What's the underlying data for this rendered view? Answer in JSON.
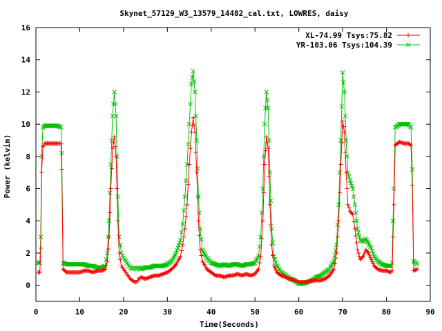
{
  "chart_data": {
    "type": "line",
    "title": "Skynet_57129_W3_13579_14482_cal.txt, LOWRES, daisy",
    "xlabel": "Time(Seconds)",
    "ylabel": "Power (kelvin)",
    "xlim": [
      0,
      90
    ],
    "ylim": [
      -1,
      16
    ],
    "xticks": [
      "0",
      "10",
      "20",
      "30",
      "40",
      "50",
      "60",
      "70",
      "80",
      "90"
    ],
    "yticks": [
      "0",
      "2",
      "4",
      "6",
      "8",
      "10",
      "12",
      "14",
      "16"
    ],
    "grid": false,
    "legend_position": "top-right",
    "series": [
      {
        "name": "XL-74.99 Tsys:75.82",
        "color": "#ff0000",
        "marker": "plus",
        "points": [
          [
            0.5,
            0.8
          ],
          [
            0.9,
            0.8
          ],
          [
            1.1,
            2.3
          ],
          [
            1.3,
            7.0
          ],
          [
            1.6,
            8.6
          ],
          [
            2.0,
            8.8
          ],
          [
            3.0,
            8.8
          ],
          [
            4.0,
            8.8
          ],
          [
            5.0,
            8.8
          ],
          [
            5.7,
            8.8
          ],
          [
            5.9,
            7.2
          ],
          [
            6.2,
            1.0
          ],
          [
            7.0,
            0.8
          ],
          [
            8.0,
            0.8
          ],
          [
            9.0,
            0.8
          ],
          [
            10.0,
            0.8
          ],
          [
            11.0,
            0.9
          ],
          [
            12.0,
            0.9
          ],
          [
            13.0,
            0.8
          ],
          [
            14.0,
            0.9
          ],
          [
            15.0,
            0.9
          ],
          [
            15.8,
            1.0
          ],
          [
            16.3,
            1.5
          ],
          [
            16.7,
            3.0
          ],
          [
            17.1,
            6.0
          ],
          [
            17.5,
            8.5
          ],
          [
            17.9,
            9.2
          ],
          [
            18.3,
            8.0
          ],
          [
            18.7,
            4.0
          ],
          [
            19.0,
            2.0
          ],
          [
            19.5,
            1.2
          ],
          [
            20.0,
            1.0
          ],
          [
            20.5,
            0.8
          ],
          [
            21.0,
            0.6
          ],
          [
            21.5,
            0.4
          ],
          [
            22.0,
            0.3
          ],
          [
            22.5,
            0.2
          ],
          [
            23.0,
            0.2
          ],
          [
            23.5,
            0.4
          ],
          [
            24.0,
            0.5
          ],
          [
            25.0,
            0.4
          ],
          [
            26.0,
            0.5
          ],
          [
            27.0,
            0.6
          ],
          [
            28.0,
            0.6
          ],
          [
            29.0,
            0.7
          ],
          [
            30.0,
            0.8
          ],
          [
            31.0,
            1.0
          ],
          [
            32.0,
            1.3
          ],
          [
            33.0,
            1.8
          ],
          [
            33.5,
            2.5
          ],
          [
            34.0,
            3.5
          ],
          [
            34.5,
            5.0
          ],
          [
            35.0,
            7.5
          ],
          [
            35.5,
            9.5
          ],
          [
            35.9,
            10.4
          ],
          [
            36.3,
            9.5
          ],
          [
            36.7,
            7.0
          ],
          [
            37.1,
            4.0
          ],
          [
            37.5,
            2.2
          ],
          [
            38.0,
            1.5
          ],
          [
            39.0,
            1.0
          ],
          [
            40.0,
            0.8
          ],
          [
            41.0,
            0.6
          ],
          [
            42.0,
            0.6
          ],
          [
            43.0,
            0.5
          ],
          [
            44.0,
            0.6
          ],
          [
            45.0,
            0.6
          ],
          [
            46.0,
            0.7
          ],
          [
            47.0,
            0.6
          ],
          [
            48.0,
            0.7
          ],
          [
            49.0,
            0.6
          ],
          [
            50.0,
            0.7
          ],
          [
            50.8,
            1.0
          ],
          [
            51.3,
            1.8
          ],
          [
            51.8,
            4.0
          ],
          [
            52.2,
            7.5
          ],
          [
            52.6,
            9.2
          ],
          [
            53.0,
            8.5
          ],
          [
            53.4,
            5.0
          ],
          [
            53.8,
            2.5
          ],
          [
            54.3,
            1.2
          ],
          [
            55.0,
            0.8
          ],
          [
            56.0,
            0.6
          ],
          [
            57.0,
            0.5
          ],
          [
            58.0,
            0.4
          ],
          [
            59.0,
            0.3
          ],
          [
            60.0,
            0.2
          ],
          [
            61.0,
            0.2
          ],
          [
            62.0,
            0.2
          ],
          [
            63.0,
            0.3
          ],
          [
            64.0,
            0.3
          ],
          [
            65.0,
            0.3
          ],
          [
            66.0,
            0.4
          ],
          [
            67.0,
            0.6
          ],
          [
            68.0,
            1.0
          ],
          [
            68.6,
            2.0
          ],
          [
            69.1,
            4.0
          ],
          [
            69.6,
            7.5
          ],
          [
            70.0,
            10.2
          ],
          [
            70.4,
            9.5
          ],
          [
            70.8,
            7.0
          ],
          [
            71.2,
            5.0
          ],
          [
            71.7,
            4.6
          ],
          [
            72.3,
            4.4
          ],
          [
            72.8,
            3.5
          ],
          [
            73.4,
            2.2
          ],
          [
            74.0,
            1.6
          ],
          [
            74.7,
            1.8
          ],
          [
            75.3,
            2.2
          ],
          [
            75.9,
            2.0
          ],
          [
            76.5,
            1.6
          ],
          [
            77.2,
            1.2
          ],
          [
            78.0,
            1.0
          ],
          [
            79.0,
            0.9
          ],
          [
            80.0,
            0.9
          ],
          [
            81.0,
            0.8
          ],
          [
            81.3,
            0.9
          ],
          [
            81.5,
            3.0
          ],
          [
            81.7,
            5.0
          ],
          [
            82.0,
            8.7
          ],
          [
            83.0,
            8.9
          ],
          [
            84.0,
            8.8
          ],
          [
            85.0,
            8.8
          ],
          [
            85.6,
            8.7
          ],
          [
            85.9,
            6.2
          ],
          [
            86.2,
            0.9
          ],
          [
            87.0,
            1.0
          ]
        ]
      },
      {
        "name": "YR-103.06 Tsys:104.39",
        "color": "#00c000",
        "marker": "cross",
        "points": [
          [
            0.5,
            1.4
          ],
          [
            0.9,
            1.4
          ],
          [
            1.1,
            3.0
          ],
          [
            1.3,
            8.0
          ],
          [
            1.6,
            9.8
          ],
          [
            2.0,
            9.9
          ],
          [
            3.0,
            9.9
          ],
          [
            4.0,
            9.9
          ],
          [
            5.0,
            9.9
          ],
          [
            5.7,
            9.8
          ],
          [
            5.9,
            8.2
          ],
          [
            6.2,
            1.4
          ],
          [
            7.0,
            1.3
          ],
          [
            8.0,
            1.3
          ],
          [
            9.0,
            1.3
          ],
          [
            10.0,
            1.3
          ],
          [
            11.0,
            1.3
          ],
          [
            12.0,
            1.2
          ],
          [
            13.0,
            1.2
          ],
          [
            14.0,
            1.1
          ],
          [
            15.0,
            1.1
          ],
          [
            15.8,
            1.2
          ],
          [
            16.3,
            2.0
          ],
          [
            16.7,
            4.0
          ],
          [
            17.1,
            7.5
          ],
          [
            17.5,
            10.5
          ],
          [
            17.9,
            12.0
          ],
          [
            18.3,
            10.5
          ],
          [
            18.7,
            5.5
          ],
          [
            19.0,
            3.0
          ],
          [
            19.5,
            2.0
          ],
          [
            20.0,
            1.7
          ],
          [
            20.5,
            1.5
          ],
          [
            21.0,
            1.3
          ],
          [
            21.5,
            1.1
          ],
          [
            22.0,
            1.0
          ],
          [
            22.5,
            1.1
          ],
          [
            23.0,
            1.0
          ],
          [
            23.5,
            1.1
          ],
          [
            24.0,
            1.0
          ],
          [
            25.0,
            1.1
          ],
          [
            26.0,
            1.1
          ],
          [
            27.0,
            1.2
          ],
          [
            28.0,
            1.2
          ],
          [
            29.0,
            1.2
          ],
          [
            30.0,
            1.3
          ],
          [
            31.0,
            1.5
          ],
          [
            32.0,
            2.0
          ],
          [
            33.0,
            2.8
          ],
          [
            33.5,
            3.8
          ],
          [
            34.0,
            5.5
          ],
          [
            34.5,
            7.5
          ],
          [
            35.0,
            10.0
          ],
          [
            35.5,
            12.5
          ],
          [
            35.9,
            13.3
          ],
          [
            36.3,
            12.0
          ],
          [
            36.7,
            9.0
          ],
          [
            37.1,
            5.5
          ],
          [
            37.5,
            3.5
          ],
          [
            38.0,
            2.2
          ],
          [
            39.0,
            1.7
          ],
          [
            40.0,
            1.4
          ],
          [
            41.0,
            1.3
          ],
          [
            42.0,
            1.2
          ],
          [
            43.0,
            1.3
          ],
          [
            44.0,
            1.2
          ],
          [
            45.0,
            1.3
          ],
          [
            46.0,
            1.3
          ],
          [
            47.0,
            1.2
          ],
          [
            48.0,
            1.3
          ],
          [
            49.0,
            1.3
          ],
          [
            50.0,
            1.4
          ],
          [
            50.8,
            1.8
          ],
          [
            51.3,
            3.0
          ],
          [
            51.8,
            6.0
          ],
          [
            52.2,
            10.0
          ],
          [
            52.6,
            12.0
          ],
          [
            53.0,
            11.0
          ],
          [
            53.4,
            7.0
          ],
          [
            53.8,
            3.5
          ],
          [
            54.3,
            1.8
          ],
          [
            55.0,
            1.2
          ],
          [
            56.0,
            0.8
          ],
          [
            57.0,
            0.6
          ],
          [
            58.0,
            0.4
          ],
          [
            59.0,
            0.3
          ],
          [
            60.0,
            0.1
          ],
          [
            61.0,
            0.1
          ],
          [
            62.0,
            0.2
          ],
          [
            63.0,
            0.3
          ],
          [
            64.0,
            0.5
          ],
          [
            65.0,
            0.6
          ],
          [
            66.0,
            0.8
          ],
          [
            67.0,
            1.0
          ],
          [
            68.0,
            1.5
          ],
          [
            68.6,
            2.5
          ],
          [
            69.1,
            5.0
          ],
          [
            69.6,
            9.0
          ],
          [
            70.0,
            13.2
          ],
          [
            70.4,
            12.0
          ],
          [
            70.8,
            9.0
          ],
          [
            71.2,
            7.0
          ],
          [
            71.7,
            6.5
          ],
          [
            72.3,
            6.0
          ],
          [
            72.8,
            5.0
          ],
          [
            73.4,
            3.5
          ],
          [
            74.0,
            2.8
          ],
          [
            74.7,
            2.7
          ],
          [
            75.3,
            2.9
          ],
          [
            75.9,
            2.6
          ],
          [
            76.5,
            2.3
          ],
          [
            77.2,
            1.8
          ],
          [
            78.0,
            1.5
          ],
          [
            79.0,
            1.3
          ],
          [
            80.0,
            1.2
          ],
          [
            81.0,
            1.2
          ],
          [
            81.3,
            1.4
          ],
          [
            81.5,
            4.0
          ],
          [
            81.7,
            6.0
          ],
          [
            82.0,
            9.8
          ],
          [
            83.0,
            10.0
          ],
          [
            84.0,
            10.0
          ],
          [
            85.0,
            10.0
          ],
          [
            85.6,
            9.8
          ],
          [
            85.9,
            7.2
          ],
          [
            86.2,
            1.5
          ],
          [
            87.0,
            1.3
          ]
        ]
      }
    ]
  }
}
